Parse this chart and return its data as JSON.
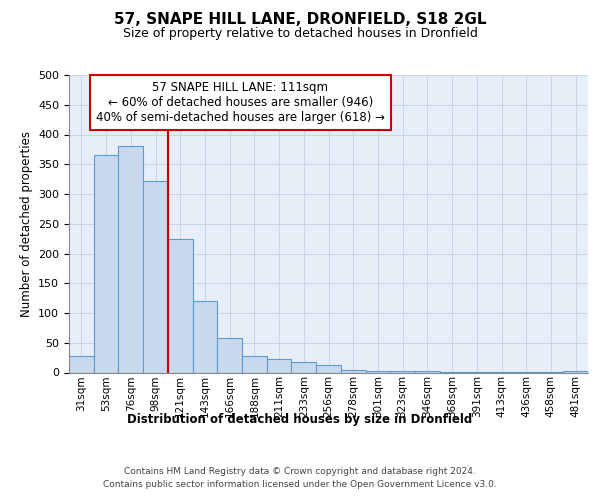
{
  "title1": "57, SNAPE HILL LANE, DRONFIELD, S18 2GL",
  "title2": "Size of property relative to detached houses in Dronfield",
  "xlabel": "Distribution of detached houses by size in Dronfield",
  "ylabel": "Number of detached properties",
  "footnote1": "Contains HM Land Registry data © Crown copyright and database right 2024.",
  "footnote2": "Contains public sector information licensed under the Open Government Licence v3.0.",
  "annotation_line1": "57 SNAPE HILL LANE: 111sqm",
  "annotation_line2": "← 60% of detached houses are smaller (946)",
  "annotation_line3": "40% of semi-detached houses are larger (618) →",
  "bar_color": "#c8d9ee",
  "bar_edge_color": "#5b9bd5",
  "vline_color": "#cc0000",
  "grid_color": "#c8d4e8",
  "bg_color": "#e8eef8",
  "categories": [
    "31sqm",
    "53sqm",
    "76sqm",
    "98sqm",
    "121sqm",
    "143sqm",
    "166sqm",
    "188sqm",
    "211sqm",
    "233sqm",
    "256sqm",
    "278sqm",
    "301sqm",
    "323sqm",
    "346sqm",
    "368sqm",
    "391sqm",
    "413sqm",
    "436sqm",
    "458sqm",
    "481sqm"
  ],
  "values": [
    27,
    365,
    380,
    322,
    225,
    120,
    58,
    27,
    23,
    17,
    13,
    5,
    3,
    2,
    2,
    1,
    1,
    1,
    1,
    1,
    2
  ],
  "ylim": [
    0,
    500
  ],
  "yticks": [
    0,
    50,
    100,
    150,
    200,
    250,
    300,
    350,
    400,
    450,
    500
  ]
}
